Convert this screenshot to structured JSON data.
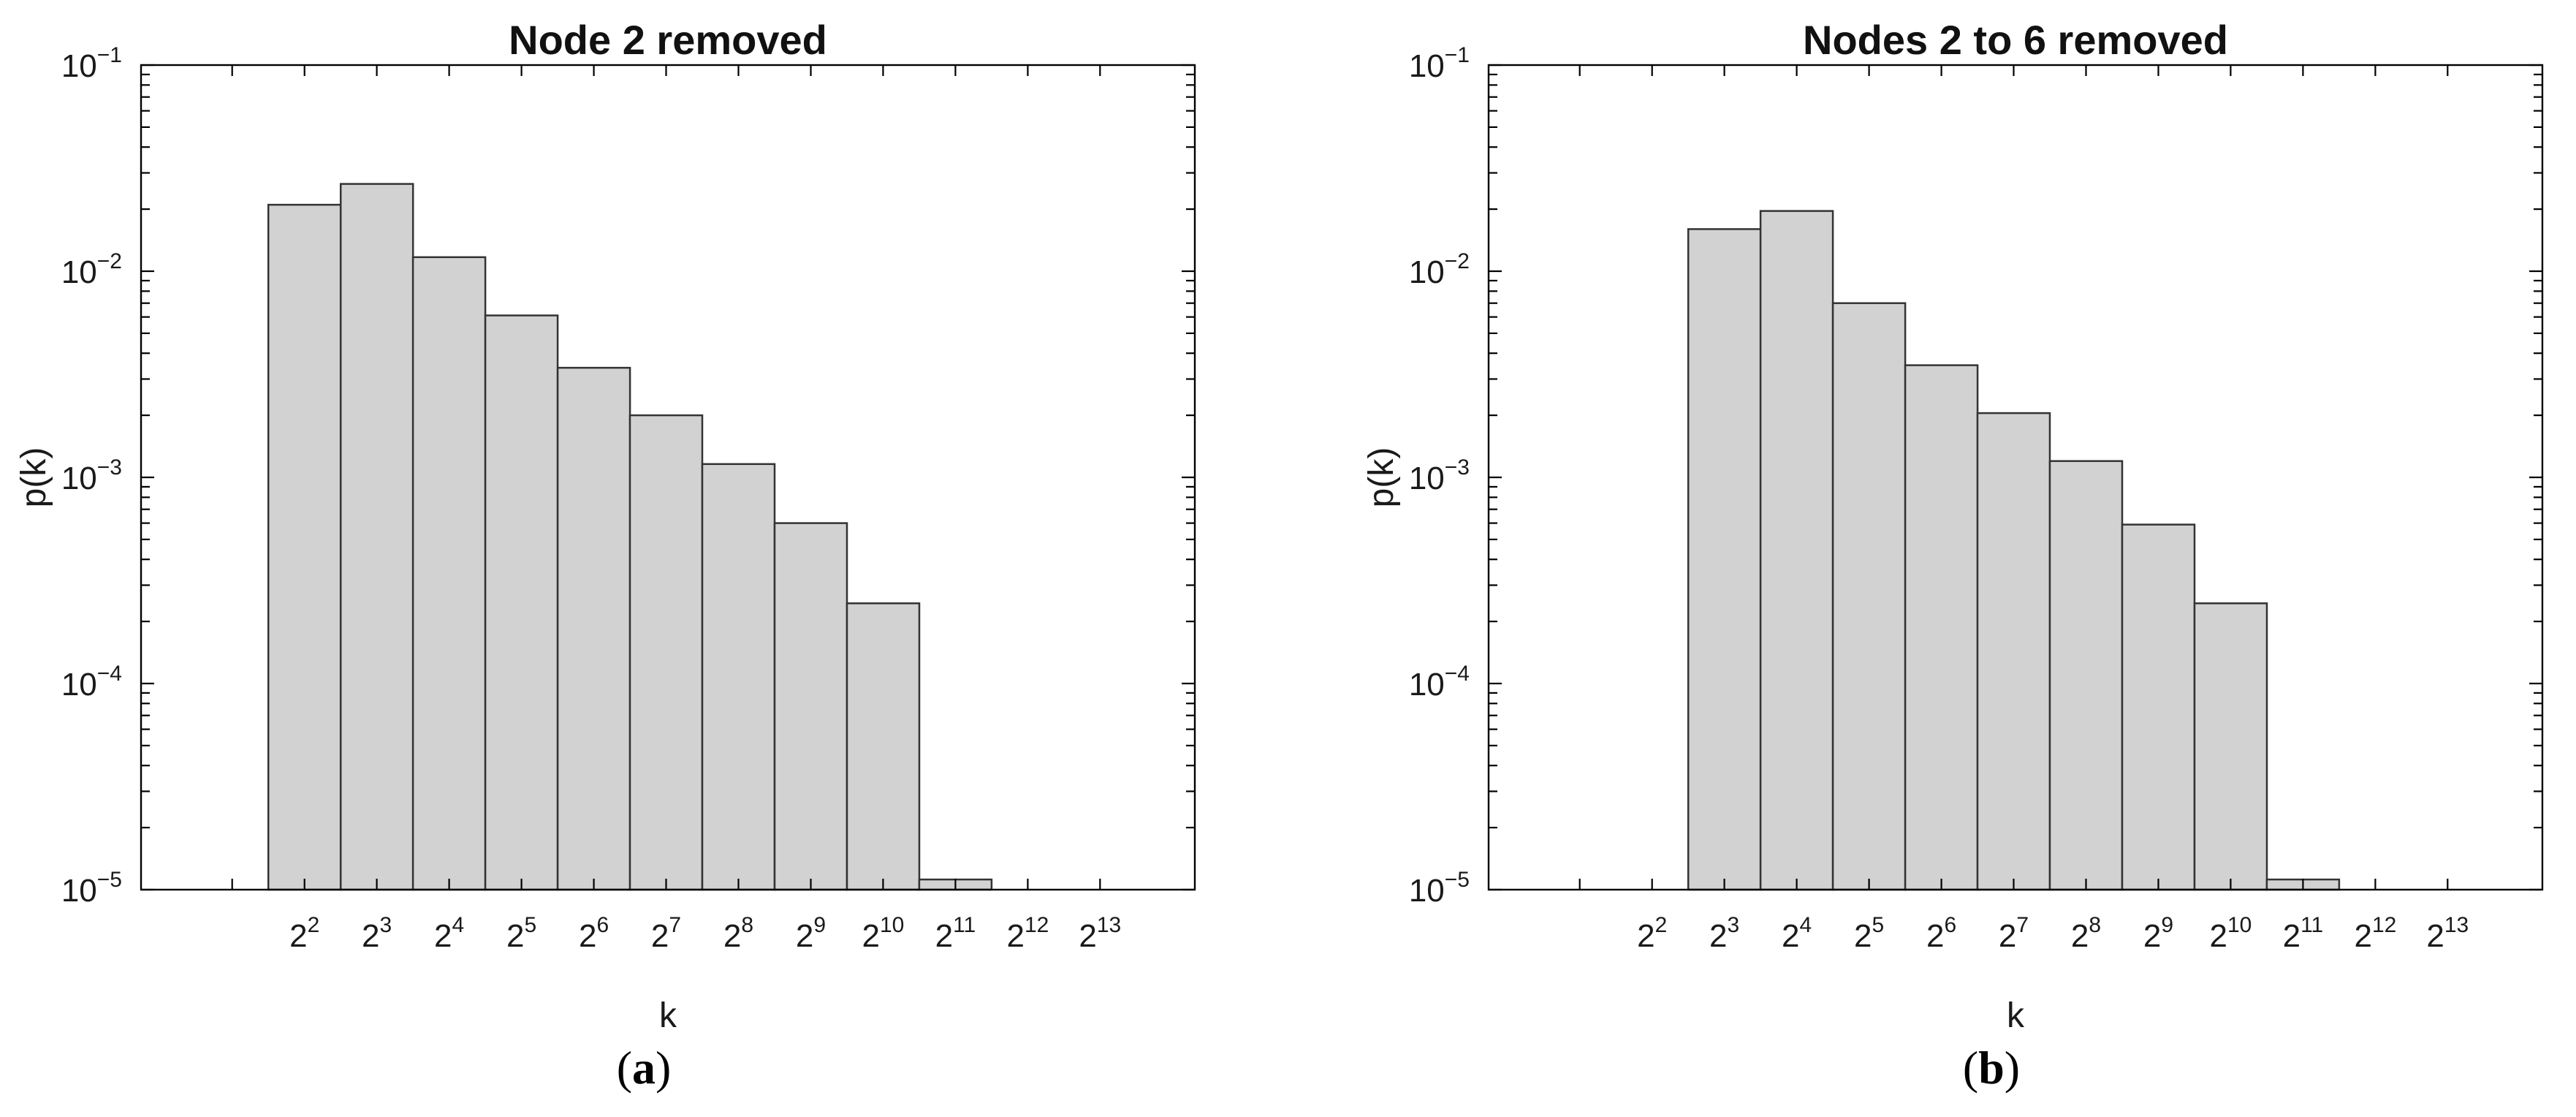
{
  "figure": {
    "background": "#ffffff",
    "panels": [
      {
        "caption": {
          "open": "(",
          "letter": "a",
          "close": ")"
        }
      },
      {
        "caption": {
          "open": "(",
          "letter": "b",
          "close": ")"
        }
      }
    ]
  },
  "chart_data": [
    {
      "type": "bar",
      "title": "Node 2 removed",
      "xlabel": "k",
      "ylabel": "p(k)",
      "x_scale": "log2",
      "y_scale": "log10",
      "x_tick_exponents": [
        1,
        2,
        3,
        4,
        5,
        6,
        7,
        8,
        9,
        10,
        11,
        12,
        13
      ],
      "x_labeled_tick_exponents": [
        2,
        3,
        4,
        5,
        6,
        7,
        8,
        9,
        10,
        11,
        12,
        13
      ],
      "x_tick_base": "2",
      "y_tick_base": "10",
      "y_tick_exponents": [
        -1,
        -2,
        -3,
        -4,
        -5
      ],
      "ylim": [
        1e-05,
        0.1
      ],
      "bin_width_octaves": 1,
      "bins": [
        {
          "center_exp": 2,
          "p": 0.021
        },
        {
          "center_exp": 3,
          "p": 0.0265
        },
        {
          "center_exp": 4,
          "p": 0.0117
        },
        {
          "center_exp": 5,
          "p": 0.0061
        },
        {
          "center_exp": 6,
          "p": 0.0034
        },
        {
          "center_exp": 7,
          "p": 0.002
        },
        {
          "center_exp": 8,
          "p": 0.00116
        },
        {
          "center_exp": 9,
          "p": 0.0006
        },
        {
          "center_exp": 10,
          "p": 0.000245
        },
        {
          "center_exp": 11,
          "p": 1.12e-05
        }
      ],
      "colors": {
        "bar_fill": "#d2d2d2",
        "bar_edge": "#333333",
        "axis": "#000000",
        "text": "#1a1a1a"
      }
    },
    {
      "type": "bar",
      "title": "Nodes 2 to 6 removed",
      "xlabel": "k",
      "ylabel": "p(k)",
      "x_scale": "log2",
      "y_scale": "log10",
      "x_tick_exponents": [
        1,
        2,
        3,
        4,
        5,
        6,
        7,
        8,
        9,
        10,
        11,
        12,
        13
      ],
      "x_labeled_tick_exponents": [
        2,
        3,
        4,
        5,
        6,
        7,
        8,
        9,
        10,
        11,
        12,
        13
      ],
      "x_tick_base": "2",
      "y_tick_base": "10",
      "y_tick_exponents": [
        -1,
        -2,
        -3,
        -4,
        -5
      ],
      "ylim": [
        1e-05,
        0.1
      ],
      "bin_width_octaves": 1,
      "bins": [
        {
          "center_exp": 3,
          "p": 0.016
        },
        {
          "center_exp": 4,
          "p": 0.0196
        },
        {
          "center_exp": 5,
          "p": 0.007
        },
        {
          "center_exp": 6,
          "p": 0.0035
        },
        {
          "center_exp": 7,
          "p": 0.00205
        },
        {
          "center_exp": 8,
          "p": 0.0012
        },
        {
          "center_exp": 9,
          "p": 0.00059
        },
        {
          "center_exp": 10,
          "p": 0.000245
        },
        {
          "center_exp": 11,
          "p": 1.12e-05
        }
      ],
      "colors": {
        "bar_fill": "#d2d2d2",
        "bar_edge": "#333333",
        "axis": "#000000",
        "text": "#1a1a1a"
      }
    }
  ]
}
